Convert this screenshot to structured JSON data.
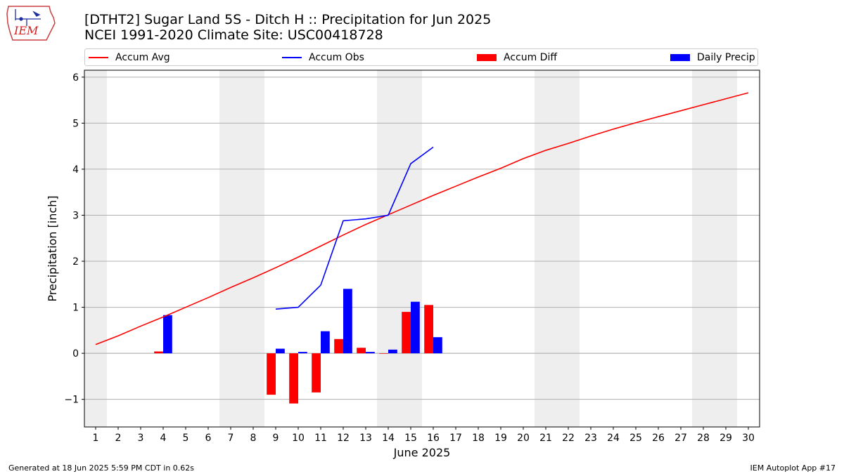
{
  "header": {
    "title_line1": "[DTHT2] Sugar Land 5S - Ditch H :: Precipitation for Jun 2025",
    "title_line2": "NCEI 1991-2020 Climate Site: USC00418728",
    "logo_text": "IEM"
  },
  "footer": {
    "generated": "Generated at 18 Jun 2025 5:59 PM CDT in 0.62s",
    "app": "IEM Autoplot App #17"
  },
  "chart_data": {
    "type": "bar",
    "title": "[DTHT2] Sugar Land 5S - Ditch H :: Precipitation for Jun 2025",
    "xlabel": "June 2025",
    "ylabel": "Precipitation [inch]",
    "xlim": [
      0.5,
      30.5
    ],
    "ylim": [
      -1.6,
      6.15
    ],
    "x": [
      1,
      2,
      3,
      4,
      5,
      6,
      7,
      8,
      9,
      10,
      11,
      12,
      13,
      14,
      15,
      16,
      17,
      18,
      19,
      20,
      21,
      22,
      23,
      24,
      25,
      26,
      27,
      28,
      29,
      30
    ],
    "xticks": [
      "1",
      "2",
      "3",
      "4",
      "5",
      "6",
      "7",
      "8",
      "9",
      "10",
      "11",
      "12",
      "13",
      "14",
      "15",
      "16",
      "17",
      "18",
      "19",
      "20",
      "21",
      "22",
      "23",
      "24",
      "25",
      "26",
      "27",
      "28",
      "29",
      "30"
    ],
    "yticks": [
      -1,
      0,
      1,
      2,
      3,
      4,
      5,
      6
    ],
    "ytick_labels": [
      "−1",
      "0",
      "1",
      "2",
      "3",
      "4",
      "5",
      "6"
    ],
    "weekend_shading": [
      [
        0.5,
        1.5
      ],
      [
        6.5,
        8.5
      ],
      [
        13.5,
        15.5
      ],
      [
        20.5,
        22.5
      ],
      [
        27.5,
        29.5
      ]
    ],
    "shade_color": "#eeeeee",
    "legend": [
      {
        "label": "Accum Avg",
        "kind": "line",
        "color": "#ff0000"
      },
      {
        "label": "Accum Obs",
        "kind": "line",
        "color": "#0000ff"
      },
      {
        "label": "Accum Diff",
        "kind": "bar",
        "color": "#ff0000"
      },
      {
        "label": "Daily Precip",
        "kind": "bar",
        "color": "#0000ff"
      }
    ],
    "series": [
      {
        "name": "Accum Avg",
        "kind": "line",
        "color": "#ff0000",
        "x": [
          1,
          2,
          3,
          4,
          5,
          6,
          7,
          8,
          9,
          10,
          11,
          12,
          13,
          14,
          15,
          16,
          17,
          18,
          19,
          20,
          21,
          22,
          23,
          24,
          25,
          26,
          27,
          28,
          29,
          30
        ],
        "values": [
          0.19,
          0.38,
          0.59,
          0.79,
          1.0,
          1.21,
          1.43,
          1.64,
          1.86,
          2.09,
          2.33,
          2.57,
          2.8,
          3.01,
          3.22,
          3.43,
          3.63,
          3.83,
          4.02,
          4.23,
          4.41,
          4.56,
          4.72,
          4.87,
          5.01,
          5.14,
          5.27,
          5.4,
          5.53,
          5.66
        ]
      },
      {
        "name": "Accum Obs",
        "kind": "line",
        "color": "#0000ff",
        "x": [
          9,
          10,
          11,
          12,
          13,
          14,
          15,
          16
        ],
        "values": [
          0.96,
          1.0,
          1.48,
          2.88,
          2.92,
          3.0,
          4.12,
          4.48
        ]
      },
      {
        "name": "Accum Diff",
        "kind": "bar",
        "color": "#ff0000",
        "x": [
          4,
          9,
          10,
          11,
          12,
          13,
          14,
          15,
          16
        ],
        "values": [
          0.04,
          -0.9,
          -1.09,
          -0.85,
          0.31,
          0.12,
          -0.01,
          0.9,
          1.05
        ]
      },
      {
        "name": "Daily Precip",
        "kind": "bar",
        "color": "#0000ff",
        "x": [
          4,
          9,
          10,
          11,
          12,
          13,
          14,
          15,
          16
        ],
        "values": [
          0.83,
          0.1,
          0.03,
          0.48,
          1.4,
          0.03,
          0.08,
          1.12,
          0.35
        ]
      }
    ]
  }
}
